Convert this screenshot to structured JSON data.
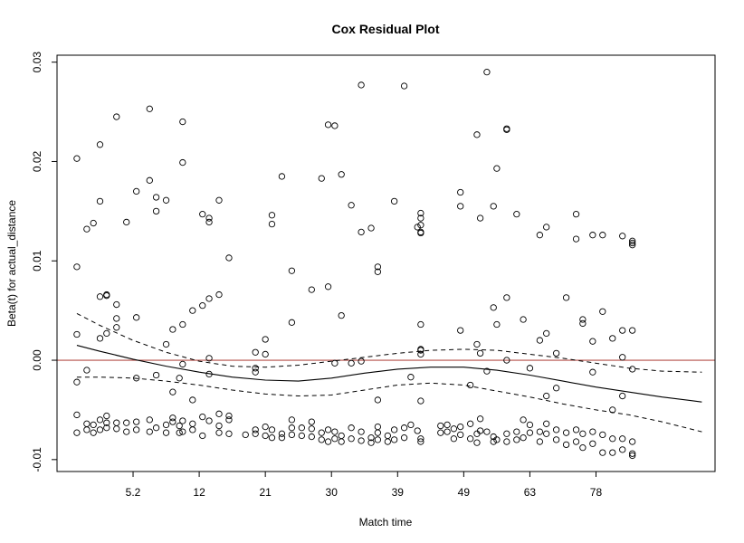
{
  "chart_data": {
    "type": "scatter",
    "title": "Cox Residual Plot",
    "xlabel": "Match time",
    "ylabel": "Beta(t) for actual_distance",
    "x_index_range": [
      -0.3,
      19.6
    ],
    "ylim": [
      -0.0112,
      0.0307
    ],
    "x_tick_labels": [
      {
        "pos": 2,
        "label": "5.2"
      },
      {
        "pos": 4,
        "label": "12"
      },
      {
        "pos": 6,
        "label": "21"
      },
      {
        "pos": 8,
        "label": "30"
      },
      {
        "pos": 10,
        "label": "39"
      },
      {
        "pos": 12,
        "label": "49"
      },
      {
        "pos": 14,
        "label": "63"
      },
      {
        "pos": 16,
        "label": "78"
      }
    ],
    "y_ticks": [
      -0.01,
      0.0,
      0.01,
      0.02,
      0.03
    ],
    "y_tick_labels": [
      "-0.01",
      "0.00",
      "0.01",
      "0.02",
      "0.03"
    ],
    "reference_line": {
      "y": 0.0,
      "color": "#b5504a"
    },
    "smooth_fit": {
      "x": [
        0.3,
        1,
        2,
        3,
        4,
        5,
        6,
        7,
        8,
        9,
        10,
        11,
        12,
        13,
        14,
        15,
        16,
        17,
        18,
        19.2
      ],
      "y": [
        0.0015,
        0.0009,
        0.0001,
        -0.0006,
        -0.0012,
        -0.0017,
        -0.002,
        -0.0021,
        -0.0018,
        -0.0013,
        -0.0009,
        -0.0007,
        -0.0007,
        -0.001,
        -0.0015,
        -0.0021,
        -0.0027,
        -0.0032,
        -0.0037,
        -0.0042
      ]
    },
    "confidence_band": {
      "x": [
        0.3,
        1,
        2,
        3,
        4,
        5,
        6,
        7,
        8,
        9,
        10,
        11,
        12,
        13,
        14,
        15,
        16,
        17,
        18,
        19.2
      ],
      "upper": [
        0.0047,
        0.0035,
        0.002,
        0.0008,
        -0.0001,
        -0.0006,
        -0.0007,
        -0.0005,
        -0.0001,
        0.0003,
        0.0007,
        0.001,
        0.0011,
        0.001,
        0.0006,
        0.0002,
        -0.0003,
        -0.0008,
        -0.0011,
        -0.0012
      ],
      "lower": [
        -0.0017,
        -0.0017,
        -0.0018,
        -0.0021,
        -0.0025,
        -0.003,
        -0.0034,
        -0.0036,
        -0.0035,
        -0.003,
        -0.0025,
        -0.0023,
        -0.0025,
        -0.0031,
        -0.0037,
        -0.0044,
        -0.005,
        -0.0055,
        -0.0062,
        -0.0072
      ]
    },
    "points": [
      [
        0.3,
        0.0203
      ],
      [
        0.3,
        0.0094
      ],
      [
        0.3,
        0.0026
      ],
      [
        0.3,
        -0.0022
      ],
      [
        0.3,
        -0.0055
      ],
      [
        0.3,
        -0.0073
      ],
      [
        0.6,
        0.0132
      ],
      [
        0.6,
        -0.001
      ],
      [
        0.6,
        -0.0064
      ],
      [
        0.6,
        -0.007
      ],
      [
        0.8,
        0.0138
      ],
      [
        0.8,
        -0.0065
      ],
      [
        0.8,
        -0.0073
      ],
      [
        1.0,
        0.0217
      ],
      [
        1.0,
        0.016
      ],
      [
        1.0,
        0.0064
      ],
      [
        1.0,
        0.0022
      ],
      [
        1.0,
        -0.006
      ],
      [
        1.0,
        -0.007
      ],
      [
        1.2,
        0.0065
      ],
      [
        1.2,
        0.0066
      ],
      [
        1.2,
        0.0027
      ],
      [
        1.2,
        -0.0056
      ],
      [
        1.2,
        -0.0063
      ],
      [
        1.2,
        -0.0068
      ],
      [
        1.5,
        0.0245
      ],
      [
        1.5,
        0.0056
      ],
      [
        1.5,
        0.0042
      ],
      [
        1.5,
        0.0033
      ],
      [
        1.5,
        -0.0063
      ],
      [
        1.5,
        -0.0069
      ],
      [
        1.8,
        0.0139
      ],
      [
        1.8,
        -0.0063
      ],
      [
        1.8,
        -0.0072
      ],
      [
        2.1,
        0.017
      ],
      [
        2.1,
        0.0043
      ],
      [
        2.1,
        -0.0018
      ],
      [
        2.1,
        -0.0062
      ],
      [
        2.1,
        -0.007
      ],
      [
        2.5,
        0.0253
      ],
      [
        2.5,
        0.0181
      ],
      [
        2.5,
        -0.006
      ],
      [
        2.5,
        -0.0072
      ],
      [
        2.7,
        0.0164
      ],
      [
        2.7,
        0.015
      ],
      [
        2.7,
        -0.0015
      ],
      [
        2.7,
        -0.0068
      ],
      [
        3.0,
        0.0161
      ],
      [
        3.0,
        0.0016
      ],
      [
        3.0,
        -0.0065
      ],
      [
        3.0,
        -0.0073
      ],
      [
        3.2,
        0.0031
      ],
      [
        3.2,
        -0.0032
      ],
      [
        3.2,
        -0.0058
      ],
      [
        3.2,
        -0.0062
      ],
      [
        3.4,
        -0.0018
      ],
      [
        3.4,
        -0.0066
      ],
      [
        3.4,
        -0.0073
      ],
      [
        3.5,
        0.024
      ],
      [
        3.5,
        0.0199
      ],
      [
        3.5,
        0.0036
      ],
      [
        3.5,
        -0.0004
      ],
      [
        3.5,
        -0.0061
      ],
      [
        3.5,
        -0.0072
      ],
      [
        3.8,
        0.005
      ],
      [
        3.8,
        -0.004
      ],
      [
        3.8,
        -0.0064
      ],
      [
        3.8,
        -0.007
      ],
      [
        4.1,
        0.0147
      ],
      [
        4.1,
        0.0055
      ],
      [
        4.1,
        -0.0057
      ],
      [
        4.1,
        -0.0076
      ],
      [
        4.3,
        0.0143
      ],
      [
        4.3,
        0.0139
      ],
      [
        4.3,
        0.0062
      ],
      [
        4.3,
        0.0002
      ],
      [
        4.3,
        -0.0014
      ],
      [
        4.3,
        -0.0061
      ],
      [
        4.6,
        0.0161
      ],
      [
        4.6,
        0.0066
      ],
      [
        4.6,
        -0.0054
      ],
      [
        4.6,
        -0.0066
      ],
      [
        4.6,
        -0.0073
      ],
      [
        4.9,
        0.0103
      ],
      [
        4.9,
        -0.0056
      ],
      [
        4.9,
        -0.006
      ],
      [
        4.9,
        -0.0074
      ],
      [
        5.4,
        -0.0075
      ],
      [
        5.7,
        0.0008
      ],
      [
        5.7,
        -0.0008
      ],
      [
        5.7,
        -0.0012
      ],
      [
        5.7,
        -0.007
      ],
      [
        5.7,
        -0.0074
      ],
      [
        6.0,
        0.0021
      ],
      [
        6.0,
        0.0006
      ],
      [
        6.0,
        -0.0067
      ],
      [
        6.0,
        -0.0076
      ],
      [
        6.2,
        0.0146
      ],
      [
        6.2,
        0.0137
      ],
      [
        6.2,
        -0.007
      ],
      [
        6.2,
        -0.0078
      ],
      [
        6.5,
        0.0185
      ],
      [
        6.5,
        -0.0074
      ],
      [
        6.5,
        -0.0078
      ],
      [
        6.8,
        0.009
      ],
      [
        6.8,
        0.0038
      ],
      [
        6.8,
        -0.006
      ],
      [
        6.8,
        -0.0068
      ],
      [
        6.8,
        -0.0075
      ],
      [
        7.1,
        -0.0068
      ],
      [
        7.1,
        -0.0076
      ],
      [
        7.4,
        0.0071
      ],
      [
        7.4,
        -0.0062
      ],
      [
        7.4,
        -0.0069
      ],
      [
        7.4,
        -0.0077
      ],
      [
        7.7,
        0.0183
      ],
      [
        7.7,
        -0.0073
      ],
      [
        7.7,
        -0.008
      ],
      [
        7.9,
        0.0237
      ],
      [
        7.9,
        0.0074
      ],
      [
        7.9,
        -0.007
      ],
      [
        7.9,
        -0.0082
      ],
      [
        8.1,
        0.0236
      ],
      [
        8.1,
        -0.0003
      ],
      [
        8.1,
        -0.0072
      ],
      [
        8.1,
        -0.0079
      ],
      [
        8.3,
        0.0187
      ],
      [
        8.3,
        0.0045
      ],
      [
        8.3,
        -0.0076
      ],
      [
        8.3,
        -0.0082
      ],
      [
        8.6,
        0.0156
      ],
      [
        8.6,
        -0.0003
      ],
      [
        8.6,
        -0.0068
      ],
      [
        8.6,
        -0.0079
      ],
      [
        8.9,
        0.0277
      ],
      [
        8.9,
        0.0129
      ],
      [
        8.9,
        -0.0001
      ],
      [
        8.9,
        -0.0072
      ],
      [
        8.9,
        -0.0081
      ],
      [
        9.2,
        0.0133
      ],
      [
        9.2,
        -0.0078
      ],
      [
        9.2,
        -0.0083
      ],
      [
        9.4,
        0.0094
      ],
      [
        9.4,
        0.0089
      ],
      [
        9.4,
        -0.004
      ],
      [
        9.4,
        -0.0067
      ],
      [
        9.4,
        -0.0073
      ],
      [
        9.4,
        -0.008
      ],
      [
        9.7,
        -0.0076
      ],
      [
        9.7,
        -0.0082
      ],
      [
        9.9,
        0.016
      ],
      [
        9.9,
        -0.007
      ],
      [
        9.9,
        -0.008
      ],
      [
        10.2,
        0.0276
      ],
      [
        10.2,
        -0.0068
      ],
      [
        10.2,
        -0.0078
      ],
      [
        10.4,
        -0.0017
      ],
      [
        10.4,
        -0.0065
      ],
      [
        10.6,
        0.0134
      ],
      [
        10.6,
        -0.0071
      ],
      [
        10.7,
        0.0148
      ],
      [
        10.7,
        0.0143
      ],
      [
        10.7,
        0.0136
      ],
      [
        10.7,
        0.0129
      ],
      [
        10.7,
        0.0128
      ],
      [
        10.7,
        0.0036
      ],
      [
        10.7,
        0.0011
      ],
      [
        10.7,
        0.001
      ],
      [
        10.7,
        0.0006
      ],
      [
        10.7,
        -0.0041
      ],
      [
        10.7,
        -0.0079
      ],
      [
        10.7,
        -0.0082
      ],
      [
        11.3,
        -0.0066
      ],
      [
        11.3,
        -0.0073
      ],
      [
        11.5,
        -0.0065
      ],
      [
        11.5,
        -0.0072
      ],
      [
        11.7,
        -0.0069
      ],
      [
        11.7,
        -0.0079
      ],
      [
        11.9,
        0.0169
      ],
      [
        11.9,
        0.0155
      ],
      [
        11.9,
        0.003
      ],
      [
        11.9,
        -0.0067
      ],
      [
        11.9,
        -0.0075
      ],
      [
        12.2,
        -0.0025
      ],
      [
        12.2,
        -0.0064
      ],
      [
        12.2,
        -0.0079
      ],
      [
        12.4,
        0.0227
      ],
      [
        12.4,
        0.0016
      ],
      [
        12.4,
        -0.0074
      ],
      [
        12.4,
        -0.0083
      ],
      [
        12.5,
        0.0143
      ],
      [
        12.5,
        0.0007
      ],
      [
        12.5,
        -0.0059
      ],
      [
        12.5,
        -0.0071
      ],
      [
        12.7,
        0.029
      ],
      [
        12.7,
        -0.0011
      ],
      [
        12.7,
        -0.0072
      ],
      [
        12.9,
        0.0155
      ],
      [
        12.9,
        0.0053
      ],
      [
        12.9,
        -0.0077
      ],
      [
        12.9,
        -0.0082
      ],
      [
        13.0,
        0.0193
      ],
      [
        13.0,
        0.0036
      ],
      [
        13.0,
        -0.008
      ],
      [
        13.3,
        0.0233
      ],
      [
        13.3,
        0.0232
      ],
      [
        13.3,
        0.0063
      ],
      [
        13.3,
        0.0
      ],
      [
        13.3,
        -0.0074
      ],
      [
        13.3,
        -0.0082
      ],
      [
        13.6,
        0.0147
      ],
      [
        13.6,
        -0.0072
      ],
      [
        13.6,
        -0.008
      ],
      [
        13.8,
        0.0041
      ],
      [
        13.8,
        -0.006
      ],
      [
        13.8,
        -0.0078
      ],
      [
        14.0,
        -0.0008
      ],
      [
        14.0,
        -0.0065
      ],
      [
        14.0,
        -0.0073
      ],
      [
        14.3,
        0.0126
      ],
      [
        14.3,
        0.002
      ],
      [
        14.3,
        -0.0072
      ],
      [
        14.3,
        -0.0082
      ],
      [
        14.5,
        0.0134
      ],
      [
        14.5,
        0.0027
      ],
      [
        14.5,
        -0.0036
      ],
      [
        14.5,
        -0.0064
      ],
      [
        14.5,
        -0.0074
      ],
      [
        14.8,
        0.0007
      ],
      [
        14.8,
        -0.0028
      ],
      [
        14.8,
        -0.007
      ],
      [
        14.8,
        -0.008
      ],
      [
        15.1,
        0.0063
      ],
      [
        15.1,
        -0.0073
      ],
      [
        15.1,
        -0.0085
      ],
      [
        15.4,
        0.0147
      ],
      [
        15.4,
        0.0122
      ],
      [
        15.4,
        -0.007
      ],
      [
        15.4,
        -0.0082
      ],
      [
        15.6,
        0.0041
      ],
      [
        15.6,
        0.0037
      ],
      [
        15.6,
        -0.0074
      ],
      [
        15.6,
        -0.0088
      ],
      [
        15.9,
        0.0126
      ],
      [
        15.9,
        0.0019
      ],
      [
        15.9,
        -0.0012
      ],
      [
        15.9,
        -0.0072
      ],
      [
        15.9,
        -0.0084
      ],
      [
        16.2,
        0.0126
      ],
      [
        16.2,
        0.0049
      ],
      [
        16.2,
        -0.0075
      ],
      [
        16.2,
        -0.0093
      ],
      [
        16.5,
        0.0022
      ],
      [
        16.5,
        -0.005
      ],
      [
        16.5,
        -0.0079
      ],
      [
        16.5,
        -0.0093
      ],
      [
        16.8,
        0.0125
      ],
      [
        16.8,
        0.003
      ],
      [
        16.8,
        0.0003
      ],
      [
        16.8,
        -0.0036
      ],
      [
        16.8,
        -0.0079
      ],
      [
        16.8,
        -0.009
      ],
      [
        17.1,
        0.0118
      ],
      [
        17.1,
        0.012
      ],
      [
        17.1,
        0.0116
      ],
      [
        17.1,
        0.003
      ],
      [
        17.1,
        -0.0009
      ],
      [
        17.1,
        -0.0082
      ],
      [
        17.1,
        -0.0094
      ],
      [
        17.1,
        -0.0096
      ]
    ]
  }
}
